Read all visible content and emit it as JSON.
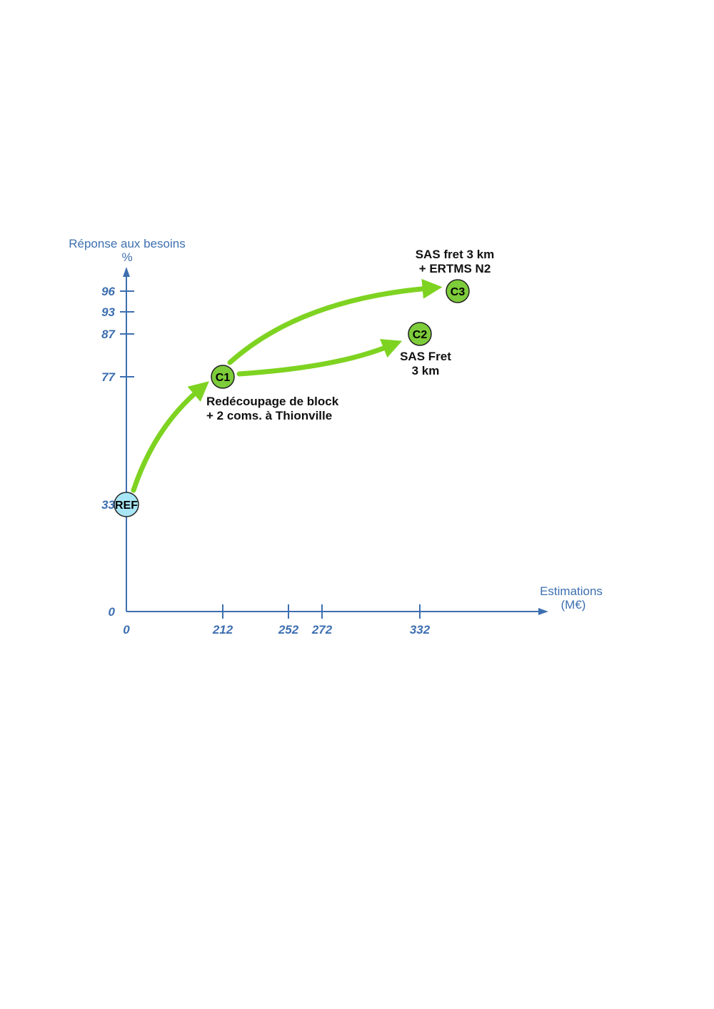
{
  "chart_data": {
    "type": "scatter",
    "x_axis": {
      "title_line1": "Estimations",
      "title_line2": "(M€)",
      "ticks": [
        0,
        212,
        252,
        272,
        332
      ],
      "tick_labels": [
        "0",
        "212",
        "252",
        "272",
        "332"
      ]
    },
    "y_axis": {
      "title_line1": "Réponse aux besoins",
      "title_line2": "%",
      "ticks": [
        0,
        33,
        77,
        87,
        93,
        96
      ],
      "tick_labels": [
        "0",
        "33",
        "77",
        "87",
        "93",
        "96"
      ]
    },
    "xlim": [
      0,
      430
    ],
    "ylim": [
      0,
      100
    ],
    "points": [
      {
        "id": "REF",
        "label": "REF",
        "x": 0,
        "y": 33,
        "color": "#a8e6f5"
      },
      {
        "id": "C1",
        "label": "C1",
        "x": 212,
        "y": 77,
        "color": "#7dcc3a"
      },
      {
        "id": "C2",
        "label": "C2",
        "x": 332,
        "y": 87,
        "color": "#7dcc3a"
      },
      {
        "id": "C3",
        "label": "C3",
        "x": 372,
        "y": 96,
        "color": "#7dcc3a"
      }
    ],
    "transitions": [
      {
        "from": "REF",
        "to": "C1"
      },
      {
        "from": "C1",
        "to": "C2"
      },
      {
        "from": "C1",
        "to": "C3"
      }
    ],
    "annotations": {
      "c1_line1": "Redécoupage de block",
      "c1_line2": "+ 2 coms. à Thionville",
      "c2_line1": "SAS Fret",
      "c2_line2": "3 km",
      "c3_line1": "SAS fret 3 km",
      "c3_line2": "+ ERTMS N2"
    },
    "colors": {
      "axis": "#3d6fb0",
      "arrow": "#7ed321"
    }
  }
}
